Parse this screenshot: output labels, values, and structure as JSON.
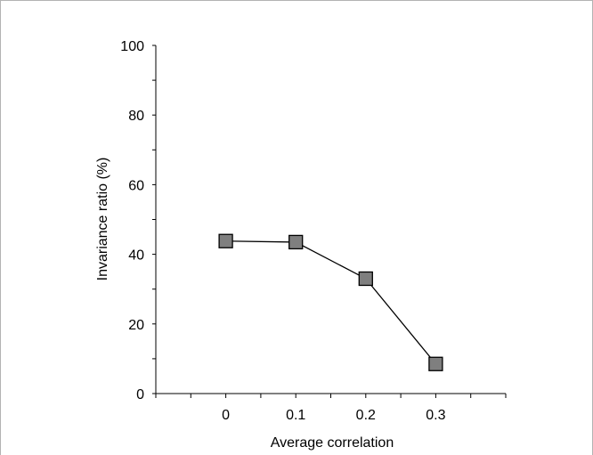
{
  "chart_data": {
    "type": "line",
    "title": "",
    "xlabel": "Average correlation",
    "ylabel": "Invariance ratio (%)",
    "categories": [
      "0",
      "0.1",
      "0.2",
      "0.3"
    ],
    "x": [
      0,
      0.1,
      0.2,
      0.3
    ],
    "xlim": [
      -0.1,
      0.4
    ],
    "ylim": [
      0,
      100
    ],
    "y_ticks": [
      "0",
      "20",
      "40",
      "60",
      "80",
      "100"
    ],
    "series": [
      {
        "values": [
          43.8,
          43.5,
          33.0,
          8.5
        ],
        "marker": "square",
        "marker_color": "#7f7f7f",
        "line_color": "#000000"
      }
    ],
    "grid": false,
    "legend": "none"
  }
}
